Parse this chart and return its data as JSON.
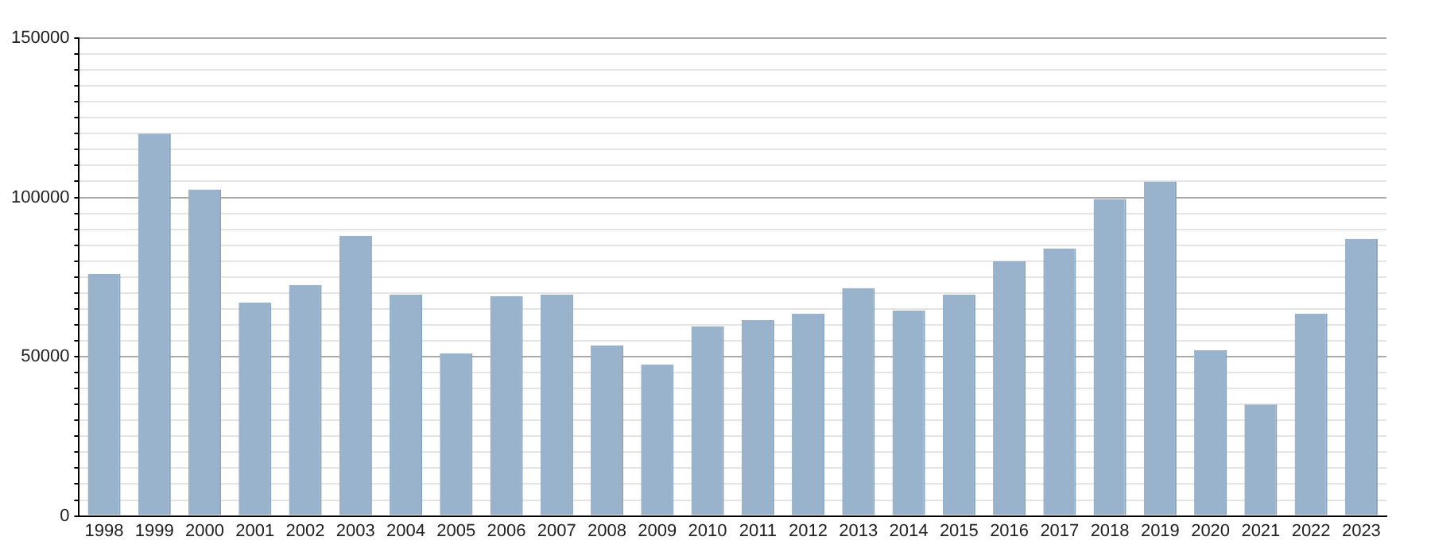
{
  "chart_data": {
    "type": "bar",
    "categories": [
      "1998",
      "1999",
      "2000",
      "2001",
      "2002",
      "2003",
      "2004",
      "2005",
      "2006",
      "2007",
      "2008",
      "2009",
      "2010",
      "2011",
      "2012",
      "2013",
      "2014",
      "2015",
      "2016",
      "2017",
      "2018",
      "2019",
      "2020",
      "2021",
      "2022",
      "2023"
    ],
    "values": [
      76000,
      120000,
      102500,
      67000,
      72500,
      88000,
      69500,
      51000,
      69000,
      69500,
      53500,
      47500,
      59500,
      61500,
      63500,
      71500,
      64500,
      69500,
      80000,
      84000,
      99500,
      105000,
      52000,
      35000,
      63500,
      87000
    ],
    "color": "#9ab3cc",
    "ylim": [
      0,
      150000
    ],
    "yticks": [
      0,
      {
        "value": 5000,
        "label": null
      },
      {
        "value": 10000,
        "label": null
      },
      {
        "value": 15000,
        "label": null
      },
      {
        "value": 20000,
        "label": null
      },
      {
        "value": 25000,
        "label": null
      },
      {
        "value": 30000,
        "label": null
      },
      {
        "value": 35000,
        "label": null
      },
      {
        "value": 40000,
        "label": null
      },
      {
        "value": 45000,
        "label": null
      },
      50000,
      {
        "value": 55000,
        "label": null
      },
      {
        "value": 60000,
        "label": null
      },
      {
        "value": 65000,
        "label": null
      },
      {
        "value": 70000,
        "label": null
      },
      {
        "value": 75000,
        "label": null
      },
      {
        "value": 80000,
        "label": null
      },
      {
        "value": 85000,
        "label": null
      },
      {
        "value": 90000,
        "label": null
      },
      {
        "value": 95000,
        "label": null
      },
      100000,
      {
        "value": 105000,
        "label": null
      },
      {
        "value": 110000,
        "label": null
      },
      {
        "value": 115000,
        "label": null
      },
      {
        "value": 120000,
        "label": null
      },
      {
        "value": 125000,
        "label": null
      },
      {
        "value": 130000,
        "label": null
      },
      {
        "value": 135000,
        "label": null
      },
      {
        "value": 140000,
        "label": null
      },
      {
        "value": 145000,
        "label": null
      },
      150000
    ],
    "grid": "y"
  }
}
